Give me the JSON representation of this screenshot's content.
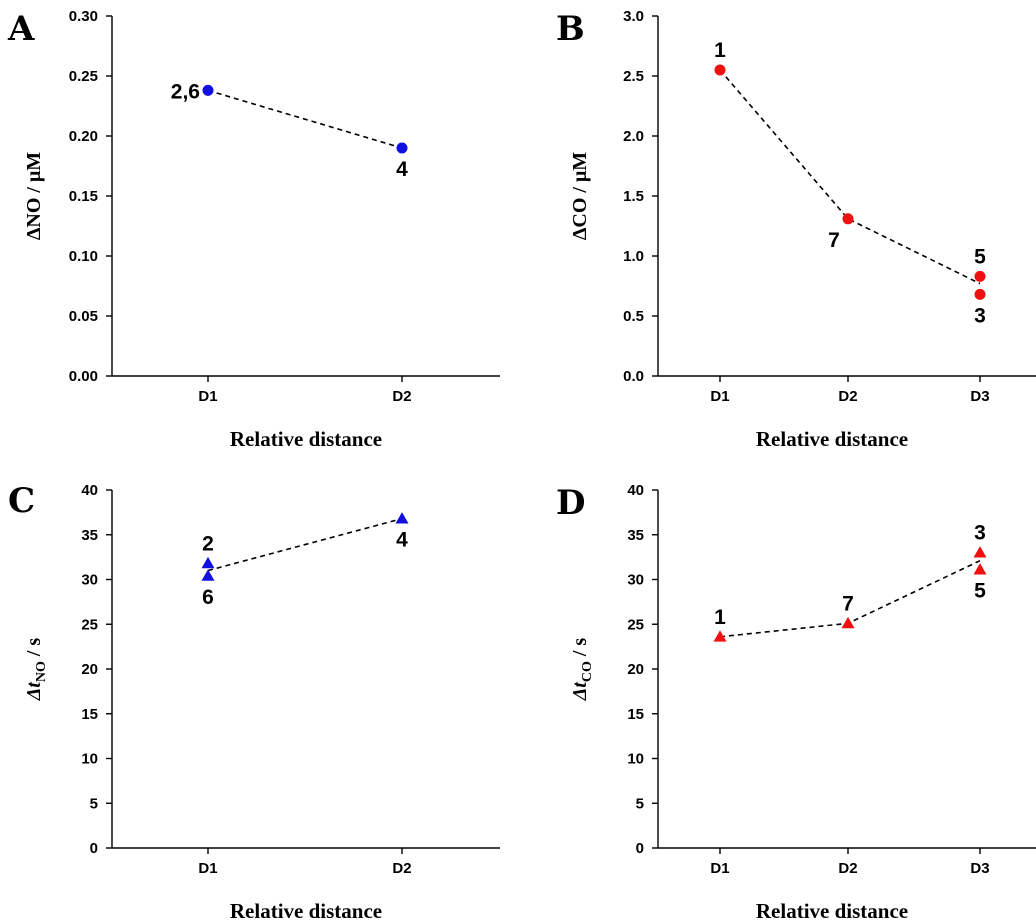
{
  "chart_data": [
    {
      "panel": "A",
      "type": "scatter",
      "marker": "circle",
      "color": "#1010e0",
      "xlabel": "Relative distance",
      "ylabel_main": "ΔNO / μM",
      "ylabel_sub": "",
      "ylabel_unit": "",
      "categories": [
        "D1",
        "D2"
      ],
      "ylim": [
        0,
        0.3
      ],
      "yticks": [
        "0.00",
        "0.05",
        "0.10",
        "0.15",
        "0.20",
        "0.25",
        "0.30"
      ],
      "points": [
        {
          "x": "D1",
          "y": 0.238
        },
        {
          "x": "D2",
          "y": 0.19
        }
      ],
      "line": [
        {
          "x": "D1",
          "y": 0.238
        },
        {
          "x": "D2",
          "y": 0.19
        }
      ],
      "labels": [
        {
          "text": "2,6",
          "x": "D1",
          "y": 0.238,
          "pos": "left"
        },
        {
          "text": "4",
          "x": "D2",
          "y": 0.19,
          "pos": "below"
        }
      ]
    },
    {
      "panel": "B",
      "type": "scatter",
      "marker": "circle",
      "color": "#f01010",
      "xlabel": "Relative distance",
      "ylabel_main": "ΔCO / μM",
      "ylabel_sub": "",
      "ylabel_unit": "",
      "categories": [
        "D1",
        "D2",
        "D3"
      ],
      "ylim": [
        0,
        3.0
      ],
      "yticks": [
        "0.0",
        "0.5",
        "1.0",
        "1.5",
        "2.0",
        "2.5",
        "3.0"
      ],
      "points": [
        {
          "x": "D1",
          "y": 2.55
        },
        {
          "x": "D2",
          "y": 1.31
        },
        {
          "x": "D3",
          "y": 0.83
        },
        {
          "x": "D3",
          "y": 0.68
        }
      ],
      "line": [
        {
          "x": "D1",
          "y": 2.55
        },
        {
          "x": "D2",
          "y": 1.31
        },
        {
          "x": "D3",
          "y": 0.77
        }
      ],
      "labels": [
        {
          "text": "1",
          "x": "D1",
          "y": 2.55,
          "pos": "above"
        },
        {
          "text": "7",
          "x": "D2",
          "y": 1.31,
          "pos": "below-left"
        },
        {
          "text": "5",
          "x": "D3",
          "y": 0.83,
          "pos": "above"
        },
        {
          "text": "3",
          "x": "D3",
          "y": 0.68,
          "pos": "below"
        }
      ]
    },
    {
      "panel": "C",
      "type": "scatter",
      "marker": "triangle",
      "color": "#1010e0",
      "xlabel": "Relative distance",
      "ylabel_main": "Δt",
      "ylabel_sub": "NO",
      "ylabel_unit": " / s",
      "categories": [
        "D1",
        "D2"
      ],
      "ylim": [
        0,
        40
      ],
      "yticks": [
        "0",
        "5",
        "10",
        "15",
        "20",
        "25",
        "30",
        "35",
        "40"
      ],
      "points": [
        {
          "x": "D1",
          "y": 31.8
        },
        {
          "x": "D1",
          "y": 30.4
        },
        {
          "x": "D2",
          "y": 36.8
        }
      ],
      "line": [
        {
          "x": "D1",
          "y": 31.0
        },
        {
          "x": "D2",
          "y": 36.8
        }
      ],
      "labels": [
        {
          "text": "2",
          "x": "D1",
          "y": 31.8,
          "pos": "above"
        },
        {
          "text": "6",
          "x": "D1",
          "y": 30.4,
          "pos": "below"
        },
        {
          "text": "4",
          "x": "D2",
          "y": 36.8,
          "pos": "below"
        }
      ]
    },
    {
      "panel": "D",
      "type": "scatter",
      "marker": "triangle",
      "color": "#f01010",
      "xlabel": "Relative distance",
      "ylabel_main": "Δt",
      "ylabel_sub": "CO",
      "ylabel_unit": " / s",
      "categories": [
        "D1",
        "D2",
        "D3"
      ],
      "ylim": [
        0,
        40
      ],
      "yticks": [
        "0",
        "5",
        "10",
        "15",
        "20",
        "25",
        "30",
        "35",
        "40"
      ],
      "points": [
        {
          "x": "D1",
          "y": 23.6
        },
        {
          "x": "D2",
          "y": 25.1
        },
        {
          "x": "D3",
          "y": 33.0
        },
        {
          "x": "D3",
          "y": 31.1
        }
      ],
      "line": [
        {
          "x": "D1",
          "y": 23.6
        },
        {
          "x": "D2",
          "y": 25.1
        },
        {
          "x": "D3",
          "y": 32.1
        }
      ],
      "labels": [
        {
          "text": "1",
          "x": "D1",
          "y": 23.6,
          "pos": "above"
        },
        {
          "text": "7",
          "x": "D2",
          "y": 25.1,
          "pos": "above"
        },
        {
          "text": "3",
          "x": "D3",
          "y": 33.0,
          "pos": "above"
        },
        {
          "text": "5",
          "x": "D3",
          "y": 31.1,
          "pos": "below"
        }
      ]
    }
  ]
}
